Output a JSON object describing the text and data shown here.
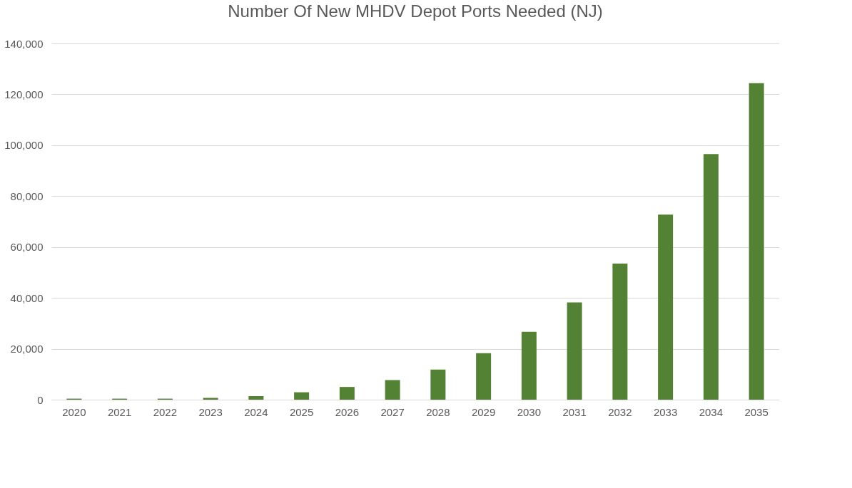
{
  "chart_data": {
    "type": "bar",
    "title": "Number Of New MHDV Depot Ports Needed (NJ)",
    "categories": [
      "2020",
      "2021",
      "2022",
      "2023",
      "2024",
      "2025",
      "2026",
      "2027",
      "2028",
      "2029",
      "2030",
      "2031",
      "2032",
      "2033",
      "2034",
      "2035"
    ],
    "values": [
      400,
      400,
      400,
      700,
      1400,
      2900,
      5000,
      7700,
      11800,
      18300,
      26700,
      38200,
      53500,
      72700,
      96500,
      124400
    ],
    "color": "#548235",
    "ylim": [
      0,
      140000
    ],
    "yticks": [
      0,
      {
        "value": 20000,
        "label": "20,000"
      },
      {
        "value": 40000,
        "label": "40,000"
      },
      {
        "value": 60000,
        "label": "60,000"
      },
      {
        "value": 80000,
        "label": "80,000"
      },
      {
        "value": 100000,
        "label": "100,000"
      },
      {
        "value": 120000,
        "label": "120,000"
      },
      {
        "value": 140000,
        "label": "140,000"
      }
    ],
    "grid": "y"
  }
}
